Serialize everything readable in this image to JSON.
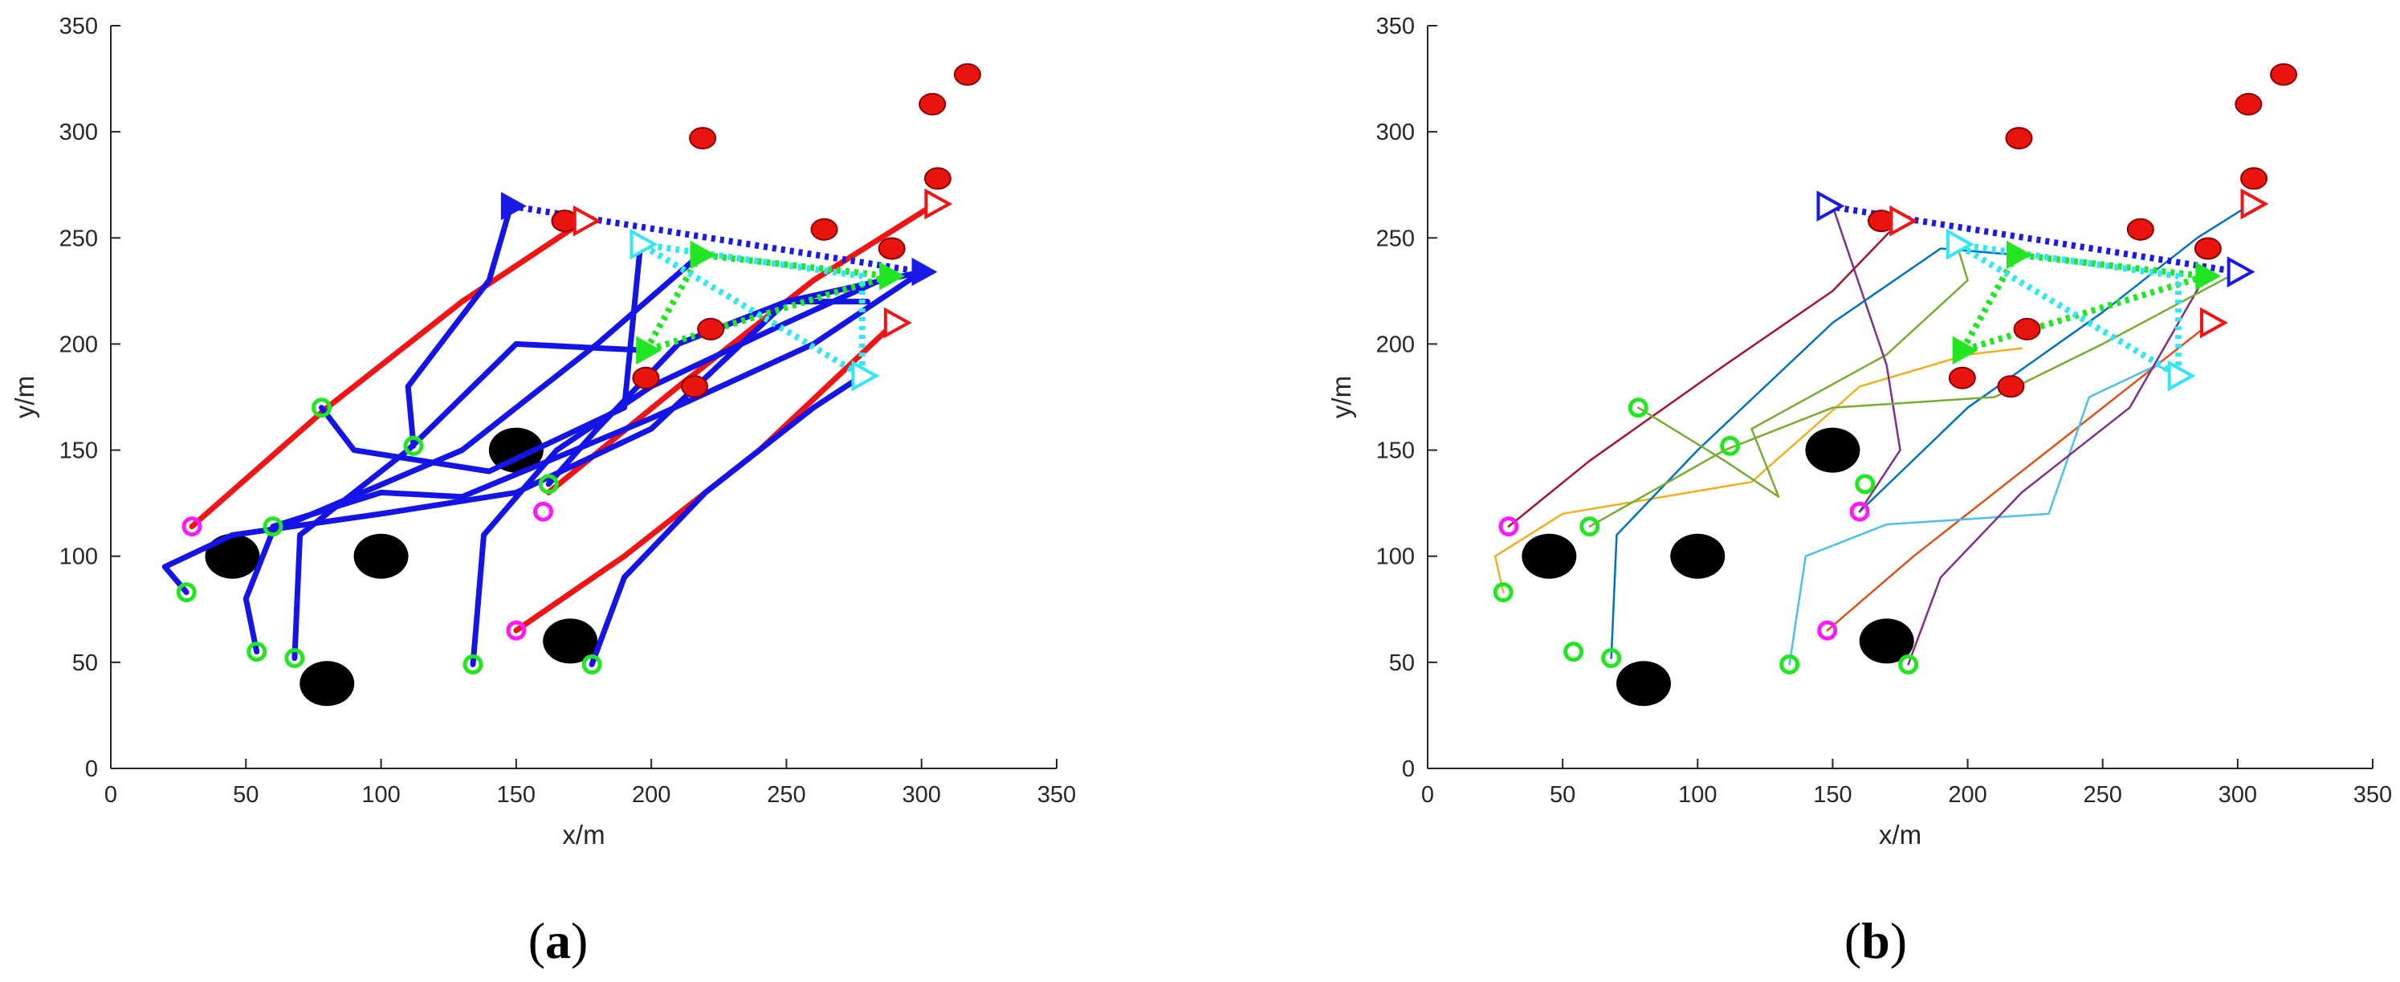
{
  "figure": {
    "panel_labels": [
      {
        "paren_open": "(",
        "letter": "a",
        "paren_close": ")"
      },
      {
        "paren_open": "(",
        "letter": "b",
        "paren_close": ")"
      }
    ]
  },
  "colors": {
    "obstacle": "#000000",
    "target": "#e8150e",
    "target_edge": "#8b0000",
    "start_green": "#22e622",
    "start_magenta": "#ff19ff",
    "traj_a_blue": "#1414e6",
    "traj_a_red": "#f01414",
    "formation_blue": "#1a1ae6",
    "formation_green": "#22e622",
    "formation_cyan": "#33e6f5",
    "formation_red": "#f01414",
    "traj_b_palette": [
      "#0072BD",
      "#D95319",
      "#EDB120",
      "#7E2F8E",
      "#77AC30",
      "#4DBEEE",
      "#A2142F",
      "#0072BD",
      "#77AC30",
      "#7E2F8E"
    ]
  },
  "chart_data": [
    {
      "panel": "a",
      "type": "scatter",
      "title": "",
      "xlabel": "x/m",
      "ylabel": "y/m",
      "xlim": [
        0,
        350
      ],
      "ylim": [
        0,
        350
      ],
      "xticks": [
        "0",
        "50",
        "100",
        "150",
        "200",
        "250",
        "300",
        "350"
      ],
      "yticks": [
        "0",
        "50",
        "100",
        "150",
        "200",
        "250",
        "300",
        "350"
      ],
      "grid": false,
      "legend": "none",
      "obstacles": [
        [
          45,
          100
        ],
        [
          100,
          100
        ],
        [
          80,
          40
        ],
        [
          150,
          150
        ],
        [
          170,
          60
        ]
      ],
      "targets": [
        [
          219,
          297
        ],
        [
          317,
          327
        ],
        [
          304,
          313
        ],
        [
          306,
          278
        ],
        [
          168,
          258
        ],
        [
          264,
          254
        ],
        [
          289,
          245
        ],
        [
          222,
          207
        ],
        [
          198,
          184
        ],
        [
          216,
          180
        ]
      ],
      "start_points_green": [
        [
          28,
          83
        ],
        [
          54,
          55
        ],
        [
          68,
          52
        ],
        [
          78,
          170
        ],
        [
          60,
          114
        ],
        [
          112,
          152
        ],
        [
          134,
          49
        ],
        [
          178,
          49
        ],
        [
          162,
          134
        ]
      ],
      "start_points_magenta": [
        [
          150,
          65
        ],
        [
          160,
          121
        ],
        [
          30,
          114
        ]
      ],
      "formation": {
        "blue": [
          [
            148,
            265
          ],
          [
            300,
            234
          ]
        ],
        "red": [
          [
            175,
            258
          ],
          [
            305,
            266
          ],
          [
            290,
            210
          ]
        ],
        "green": [
          [
            198,
            197
          ],
          [
            218,
            242
          ],
          [
            288,
            232
          ]
        ],
        "cyan": [
          [
            196,
            247
          ],
          [
            278,
            185
          ]
        ]
      },
      "trajectories": [
        {
          "style": "red",
          "points": [
            [
              30,
              114
            ],
            [
              80,
              170
            ],
            [
              130,
              220
            ],
            [
              175,
              258
            ]
          ]
        },
        {
          "style": "red",
          "points": [
            [
              150,
              65
            ],
            [
              190,
              100
            ],
            [
              240,
              150
            ],
            [
              290,
              210
            ]
          ]
        },
        {
          "style": "red",
          "points": [
            [
              162,
              130
            ],
            [
              210,
              180
            ],
            [
              260,
              230
            ],
            [
              305,
              266
            ]
          ]
        },
        {
          "style": "blue",
          "points": [
            [
              28,
              83
            ],
            [
              20,
              95
            ],
            [
              45,
              110
            ],
            [
              100,
              120
            ],
            [
              150,
              130
            ],
            [
              200,
              160
            ],
            [
              250,
              220
            ],
            [
              300,
              234
            ]
          ]
        },
        {
          "style": "blue",
          "points": [
            [
              54,
              55
            ],
            [
              50,
              80
            ],
            [
              60,
              112
            ],
            [
              130,
              150
            ],
            [
              180,
              200
            ],
            [
              218,
              242
            ]
          ]
        },
        {
          "style": "blue",
          "points": [
            [
              68,
              52
            ],
            [
              70,
              110
            ],
            [
              110,
              150
            ],
            [
              150,
              200
            ],
            [
              198,
              197
            ]
          ]
        },
        {
          "style": "blue",
          "points": [
            [
              134,
              49
            ],
            [
              138,
              110
            ],
            [
              165,
              150
            ],
            [
              200,
              180
            ],
            [
              250,
              210
            ],
            [
              288,
              232
            ]
          ]
        },
        {
          "style": "blue",
          "points": [
            [
              178,
              49
            ],
            [
              190,
              90
            ],
            [
              220,
              130
            ],
            [
              260,
              170
            ],
            [
              278,
              185
            ]
          ]
        },
        {
          "style": "blue",
          "points": [
            [
              78,
              170
            ],
            [
              90,
              150
            ],
            [
              140,
              140
            ],
            [
              190,
              170
            ],
            [
              196,
              247
            ]
          ]
        },
        {
          "style": "blue",
          "points": [
            [
              112,
              152
            ],
            [
              110,
              180
            ],
            [
              140,
              230
            ],
            [
              148,
              265
            ]
          ]
        },
        {
          "style": "blue",
          "points": [
            [
              60,
              114
            ],
            [
              100,
              130
            ],
            [
              130,
              128
            ],
            [
              200,
              165
            ],
            [
              260,
              200
            ],
            [
              300,
              234
            ]
          ]
        },
        {
          "style": "blue",
          "points": [
            [
              162,
              134
            ],
            [
              180,
              160
            ],
            [
              210,
              200
            ],
            [
              250,
              220
            ],
            [
              280,
              220
            ]
          ]
        }
      ]
    },
    {
      "panel": "b",
      "type": "scatter",
      "title": "",
      "xlabel": "x/m",
      "ylabel": "y/m",
      "xlim": [
        0,
        350
      ],
      "ylim": [
        0,
        350
      ],
      "xticks": [
        "0",
        "50",
        "100",
        "150",
        "200",
        "250",
        "300",
        "350"
      ],
      "yticks": [
        "0",
        "50",
        "100",
        "150",
        "200",
        "250",
        "300",
        "350"
      ],
      "grid": false,
      "legend": "none",
      "obstacles": [
        [
          45,
          100
        ],
        [
          100,
          100
        ],
        [
          80,
          40
        ],
        [
          150,
          150
        ],
        [
          170,
          60
        ]
      ],
      "targets": [
        [
          219,
          297
        ],
        [
          317,
          327
        ],
        [
          304,
          313
        ],
        [
          306,
          278
        ],
        [
          168,
          258
        ],
        [
          264,
          254
        ],
        [
          289,
          245
        ],
        [
          222,
          207
        ],
        [
          198,
          184
        ],
        [
          216,
          180
        ]
      ],
      "start_points_green": [
        [
          28,
          83
        ],
        [
          54,
          55
        ],
        [
          68,
          52
        ],
        [
          78,
          170
        ],
        [
          60,
          114
        ],
        [
          112,
          152
        ],
        [
          134,
          49
        ],
        [
          178,
          49
        ],
        [
          162,
          134
        ]
      ],
      "start_points_magenta": [
        [
          148,
          65
        ],
        [
          160,
          121
        ],
        [
          30,
          114
        ]
      ],
      "formation": {
        "blue": [
          [
            148,
            265
          ],
          [
            300,
            234
          ]
        ],
        "red": [
          [
            175,
            258
          ],
          [
            305,
            266
          ],
          [
            290,
            210
          ]
        ],
        "green": [
          [
            198,
            197
          ],
          [
            218,
            242
          ],
          [
            288,
            232
          ]
        ],
        "cyan": [
          [
            196,
            247
          ],
          [
            278,
            185
          ]
        ]
      },
      "trajectories": [
        {
          "color": "#A2142F",
          "points": [
            [
              30,
              114
            ],
            [
              60,
              145
            ],
            [
              110,
              190
            ],
            [
              150,
              225
            ],
            [
              175,
              258
            ]
          ]
        },
        {
          "color": "#D95319",
          "points": [
            [
              148,
              65
            ],
            [
              180,
              100
            ],
            [
              230,
              150
            ],
            [
              275,
              195
            ],
            [
              290,
              210
            ]
          ]
        },
        {
          "color": "#0072BD",
          "points": [
            [
              160,
              121
            ],
            [
              200,
              170
            ],
            [
              250,
              215
            ],
            [
              285,
              250
            ],
            [
              305,
              266
            ]
          ]
        },
        {
          "color": "#EDB120",
          "points": [
            [
              28,
              83
            ],
            [
              25,
              100
            ],
            [
              50,
              120
            ],
            [
              120,
              135
            ],
            [
              160,
              180
            ],
            [
              200,
              195
            ],
            [
              220,
              198
            ]
          ]
        },
        {
          "color": "#0072BD",
          "points": [
            [
              68,
              52
            ],
            [
              70,
              110
            ],
            [
              100,
              150
            ],
            [
              150,
              210
            ],
            [
              190,
              245
            ],
            [
              218,
              242
            ]
          ]
        },
        {
          "color": "#77AC30",
          "points": [
            [
              78,
              170
            ],
            [
              110,
              145
            ],
            [
              130,
              128
            ],
            [
              120,
              160
            ],
            [
              170,
              195
            ],
            [
              200,
              230
            ],
            [
              196,
              247
            ]
          ]
        },
        {
          "color": "#4DBEEE",
          "points": [
            [
              134,
              49
            ],
            [
              140,
              100
            ],
            [
              170,
              115
            ],
            [
              230,
              120
            ],
            [
              245,
              175
            ],
            [
              270,
              190
            ],
            [
              278,
              185
            ]
          ]
        },
        {
          "color": "#7E2F8E",
          "points": [
            [
              178,
              49
            ],
            [
              190,
              90
            ],
            [
              220,
              130
            ],
            [
              260,
              170
            ],
            [
              288,
              232
            ]
          ]
        },
        {
          "color": "#7E2F8E",
          "points": [
            [
              160,
              121
            ],
            [
              175,
              150
            ],
            [
              170,
              190
            ],
            [
              150,
              265
            ]
          ]
        },
        {
          "color": "#77AC30",
          "points": [
            [
              60,
              114
            ],
            [
              110,
              150
            ],
            [
              150,
              170
            ],
            [
              210,
              175
            ],
            [
              250,
              200
            ],
            [
              300,
              234
            ]
          ]
        }
      ]
    }
  ]
}
